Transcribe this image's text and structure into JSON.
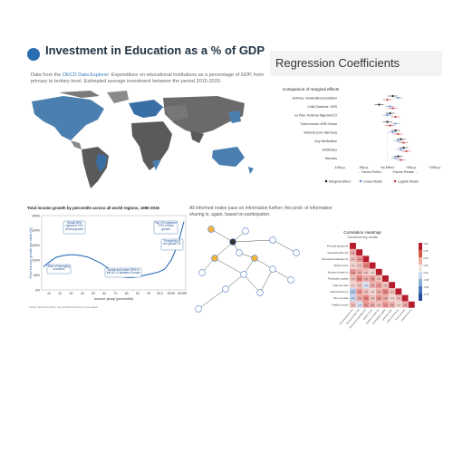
{
  "map": {
    "title": "Investment in Education as a % of GDP",
    "subtitle_pre": "Data from the ",
    "subtitle_link": "OECD Data Explorer",
    "subtitle_post": ": Expenditure on educational institutions as a percentage of GDP, from primary to tertiary level. Estimated average investment between the period 2015-2020."
  },
  "regression": {
    "header": "Regression Coefficients",
    "plot_title": "Comparison of marginal effects",
    "rows": [
      {
        "label": "Asthma: Inhaler/Bronchodilator",
        "effects": [
          0.2,
          0.4,
          0.0
        ]
      },
      {
        "label": "Child Diarrhea: ORS",
        "effects": [
          -0.3,
          0.1,
          0.2
        ]
      },
      {
        "label": "w/ Pain: Referral Naprix/ECO",
        "effects": [
          0.1,
          0.0,
          0.3
        ]
      },
      {
        "label": "Tuberculosis: AFB Smear",
        "effects": [
          0.0,
          0.3,
          0.1
        ]
      },
      {
        "label": "Referral (non-diarrhea)",
        "effects": [
          0.3,
          0.2,
          0.4
        ]
      },
      {
        "label": "Any Medication",
        "effects": [
          0.5,
          0.4,
          0.6
        ]
      },
      {
        "label": "Antibiotics",
        "effects": [
          0.6,
          0.5,
          0.7
        ]
      },
      {
        "label": "Steroids",
        "effects": [
          0.4,
          0.3,
          0.5
        ]
      }
    ],
    "xticks": [
      "-100p.p.",
      "-50p.p.",
      "No Effect",
      "+50p.p.",
      "+100p.p."
    ],
    "axis_left": "Favors Public",
    "axis_right": "Favors Private",
    "legend": [
      "Marginal Effect",
      "Linear Model",
      "Logistic Model"
    ],
    "colors": [
      "#222222",
      "#6a8fd0",
      "#c64040"
    ]
  },
  "income": {
    "title": "Total income growth by percentile across all world regions, 1980-2016",
    "ylabel": "Real income growth per adult (%)",
    "xlabel": "Income group [percentile]",
    "yticks": [
      "250%",
      "200%",
      "150%",
      "100%",
      "50%",
      "0%"
    ],
    "xticks": [
      "10",
      "20",
      "30",
      "40",
      "50",
      "60",
      "70",
      "80",
      "90",
      "99",
      "99.9",
      "99.99",
      "99.999"
    ],
    "ann1": "Global 50% captured 12% of total growth",
    "ann2": "Top 1% captured 27% of total growth",
    "ann3": "Rise of emerging countries",
    "ann4": "Squeezed bottom 90% in the US & Western Europe",
    "ann5": "Prosperity of the global 1%",
    "source": "Source: WID.world (2017). See wir2018.wid.world for more details.",
    "chart_data": {
      "type": "line",
      "x": [
        5,
        10,
        15,
        20,
        25,
        30,
        35,
        40,
        45,
        50,
        55,
        60,
        65,
        70,
        75,
        80,
        85,
        90,
        95,
        99,
        99.9,
        99.99,
        99.999
      ],
      "values": [
        78,
        95,
        110,
        115,
        118,
        118,
        115,
        110,
        100,
        90,
        75,
        55,
        45,
        42,
        42,
        45,
        50,
        55,
        60,
        70,
        100,
        150,
        230
      ],
      "ylim": [
        0,
        250
      ]
    }
  },
  "network": {
    "text": "All informed nodes pass on information further; this prob- of information sharing is, again, based on participation."
  },
  "heatmap": {
    "title": "Correlation Heatmap",
    "subtitle": "Tutorial survey results",
    "labels": [
      "Personal activity (%)",
      "Perceived effort (%)",
      "Perceived knowledge (%)",
      "Opinion score",
      "Number of tasks (n)",
      "Participation quality",
      "Visits per class",
      "Class learning (n)",
      "Term pre-tests",
      "Health tip score"
    ],
    "colorbar": [
      "1.00",
      "0.75",
      "0.50",
      "0.25",
      "0.00",
      "-0.25",
      "-0.50",
      "-0.75"
    ]
  }
}
